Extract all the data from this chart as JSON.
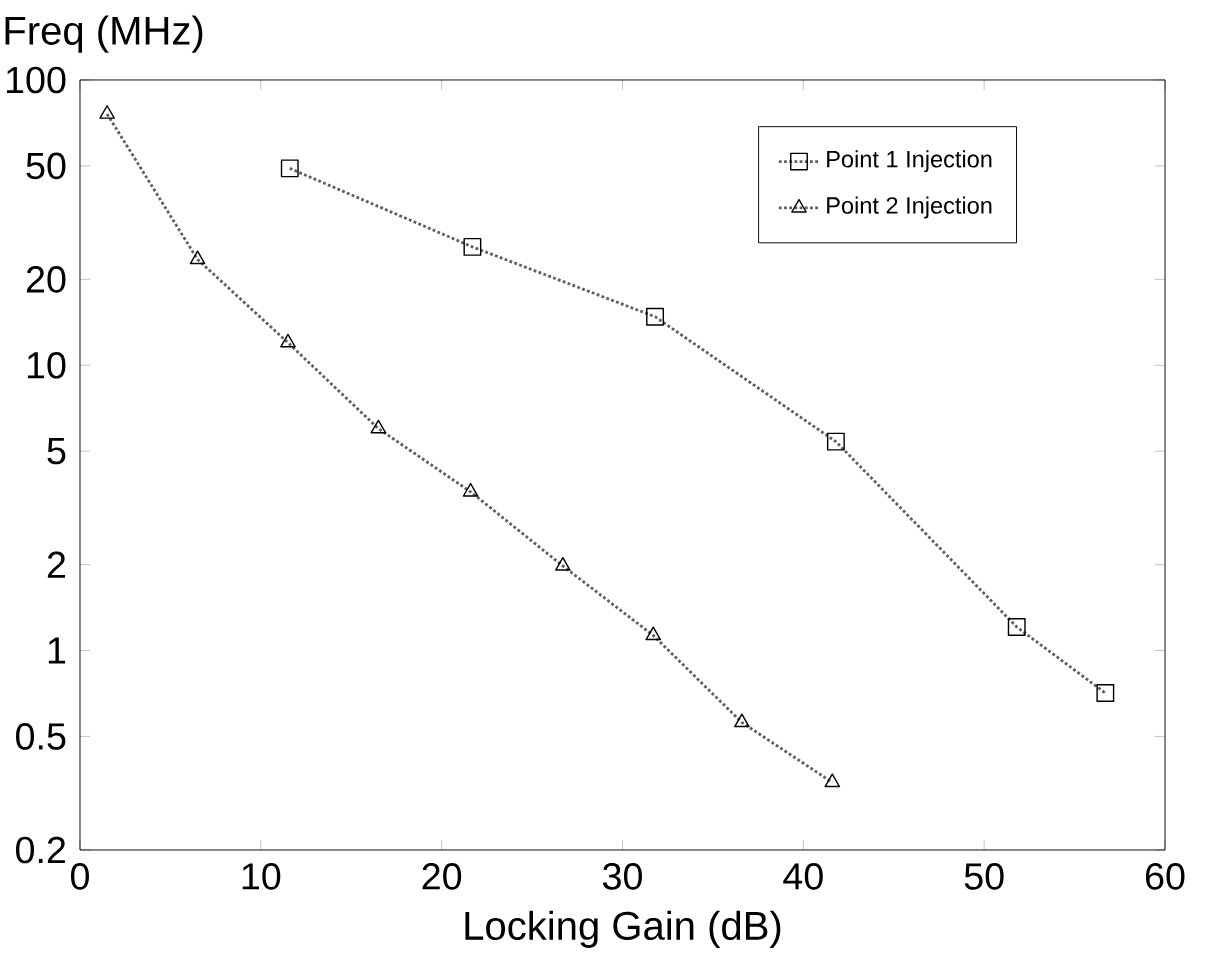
{
  "chart_data": {
    "type": "line",
    "xlabel": "Locking Gain (dB)",
    "ylabel": "Freq (MHz)",
    "log": "y",
    "xlim": [
      0,
      60
    ],
    "xticks": [
      0,
      10,
      20,
      30,
      40,
      50,
      60
    ],
    "ylim": [
      0.2,
      100
    ],
    "yticks": [
      0.2,
      0.5,
      1,
      2,
      5,
      10,
      20,
      50,
      100
    ],
    "legend": "top right",
    "line_style": "dotted",
    "grid": false,
    "series": [
      {
        "name": "Point 1 Injection",
        "color": "#606060",
        "marker": "square",
        "x": [
          11.6,
          21.7,
          31.8,
          41.8,
          51.8,
          56.7
        ],
        "values": [
          49,
          26,
          14.8,
          5.4,
          1.21,
          0.71
        ]
      },
      {
        "name": "Point 2 Injection",
        "color": "#606060",
        "marker": "triangle",
        "x": [
          1.5,
          6.5,
          11.5,
          16.5,
          21.6,
          26.7,
          31.7,
          36.6,
          41.6
        ],
        "values": [
          76,
          23.5,
          12,
          6,
          3.6,
          1.98,
          1.13,
          0.56,
          0.345
        ]
      }
    ]
  }
}
